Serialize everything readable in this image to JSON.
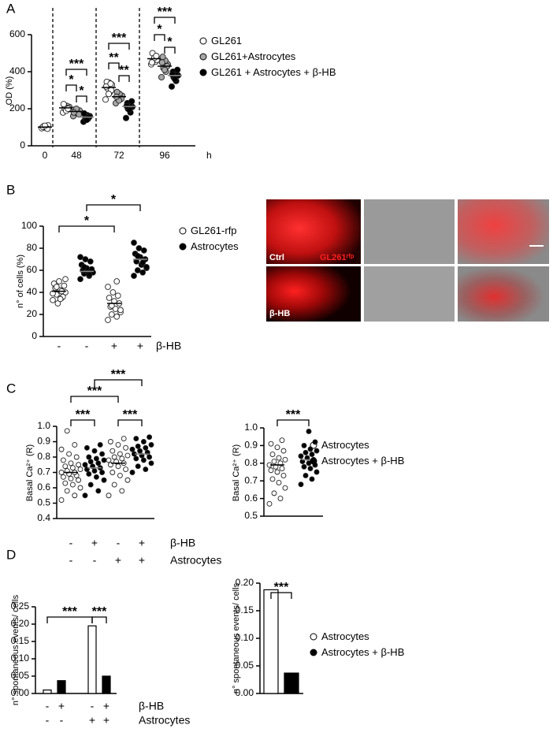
{
  "chart_data": [
    {
      "type": "dotplot",
      "panel": "A",
      "ylabel": "OD (%)",
      "rows": [
        {
          "label": "h",
          "values": [
            "0",
            "48",
            "72",
            "96"
          ]
        }
      ],
      "ylim": [
        0,
        600
      ],
      "yticks": [
        0,
        200,
        400,
        600
      ],
      "series": [
        {
          "name": "GL261",
          "color": "#ffffff",
          "values": [
            [
              95,
              100,
              105,
              110,
              98,
              102,
              92,
              108
            ],
            [
              180,
              195,
              200,
              210,
              215,
              220,
              205,
              190,
              225,
              200
            ],
            [
              250,
              290,
              310,
              330,
              340,
              345,
              300,
              280,
              320,
              335
            ],
            [
              440,
              455,
              460,
              470,
              480,
              500,
              465,
              475,
              450,
              485
            ]
          ],
          "means": [
            101,
            205,
            315,
            470
          ]
        },
        {
          "name": "GL261+Astrocytes",
          "color": "#a6a6a6",
          "values": [
            [],
            [
              160,
              175,
              180,
              190,
              185,
              195,
              170,
              200,
              180
            ],
            [
              230,
              250,
              260,
              270,
              280,
              290,
              255,
              245,
              265
            ],
            [
              370,
              400,
              420,
              440,
              460,
              480,
              430,
              410,
              450
            ]
          ],
          "means": [
            null,
            185,
            265,
            430
          ]
        },
        {
          "name": "GL261 + Astrocytes + β-HB",
          "color": "#000000",
          "values": [
            [],
            [
              130,
              145,
              150,
              160,
              165,
              170,
              155,
              140,
              175
            ],
            [
              150,
              180,
              200,
              210,
              220,
              230,
              240,
              195,
              215
            ],
            [
              320,
              350,
              370,
              380,
              390,
              400,
              410,
              360,
              385
            ]
          ],
          "means": [
            null,
            155,
            212,
            380
          ]
        }
      ],
      "significance": [
        "***",
        "*",
        "*",
        "***",
        "**",
        "**",
        "***",
        "*",
        "*"
      ]
    },
    {
      "type": "dotplot",
      "panel": "B",
      "ylabel": "n° of cells (%)",
      "rows": [
        {
          "label": "β-HB",
          "values": [
            "-",
            "-",
            "+",
            "+"
          ]
        }
      ],
      "ylim": [
        0,
        100
      ],
      "yticks": [
        0,
        20,
        40,
        60,
        80,
        100
      ],
      "series": [
        {
          "name": "GL261-rfp",
          "color": "#ffffff",
          "values": [
            [
              33,
              35,
              38,
              40,
              42,
              44,
              46,
              50,
              48,
              36,
              30,
              39,
              41,
              45,
              52,
              34
            ],
            null,
            [
              15,
              18,
              20,
              22,
              25,
              27,
              30,
              32,
              35,
              37,
              40,
              45,
              50,
              28,
              24
            ],
            null
          ],
          "means": [
            41,
            null,
            30,
            null
          ]
        },
        {
          "name": "Astrocytes",
          "color": "#000000",
          "values": [
            null,
            [
              52,
              55,
              57,
              58,
              59,
              60,
              61,
              62,
              65,
              68,
              70,
              72,
              56,
              63
            ],
            null,
            [
              55,
              58,
              60,
              62,
              65,
              68,
              70,
              72,
              75,
              78,
              80,
              85,
              67,
              73,
              63
            ]
          ],
          "means": [
            null,
            59,
            null,
            70
          ]
        }
      ],
      "significance": [
        "*",
        "*"
      ]
    },
    {
      "type": "dotplot",
      "panel": "C",
      "ylabel": "Basal Ca²⁺ (R)",
      "rows": [
        {
          "label": "β-HB",
          "values": [
            "-",
            "+",
            "-",
            "+"
          ]
        },
        {
          "label": "Astrocytes",
          "values": [
            "-",
            "-",
            "+",
            "+"
          ]
        }
      ],
      "ylim": [
        0.4,
        1
      ],
      "yticks": [
        0.4,
        0.5,
        0.6,
        0.7,
        0.8,
        0.9,
        {
          "value": 1,
          "label": "1.0"
        }
      ],
      "series": [
        {
          "color": "#ffffff",
          "values": [
            [
              0.52,
              0.55,
              0.58,
              0.6,
              0.62,
              0.63,
              0.65,
              0.66,
              0.67,
              0.68,
              0.69,
              0.7,
              0.7,
              0.71,
              0.72,
              0.73,
              0.74,
              0.75,
              0.76,
              0.78,
              0.8,
              0.82,
              0.85,
              0.88,
              0.97
            ],
            null,
            [
              0.55,
              0.58,
              0.62,
              0.65,
              0.68,
              0.7,
              0.72,
              0.74,
              0.75,
              0.76,
              0.77,
              0.78,
              0.79,
              0.8,
              0.81,
              0.82,
              0.84,
              0.86,
              0.88,
              0.9,
              0.92
            ],
            null
          ],
          "means": [
            0.7,
            null,
            0.76,
            null
          ]
        },
        {
          "color": "#000000",
          "values": [
            null,
            [
              0.55,
              0.58,
              0.62,
              0.65,
              0.67,
              0.69,
              0.7,
              0.71,
              0.72,
              0.73,
              0.74,
              0.75,
              0.76,
              0.77,
              0.78,
              0.79,
              0.8,
              0.82,
              0.84,
              0.86,
              0.88
            ],
            null,
            [
              0.7,
              0.72,
              0.74,
              0.76,
              0.78,
              0.79,
              0.8,
              0.81,
              0.82,
              0.83,
              0.84,
              0.85,
              0.86,
              0.87,
              0.88,
              0.9,
              0.92,
              0.93
            ]
          ],
          "means": [
            null,
            0.73,
            null,
            0.82
          ]
        }
      ],
      "significance": [
        "***",
        "***",
        "***",
        "***"
      ]
    },
    {
      "type": "dotplot",
      "ylabel": "Basal Ca²⁺ (R)",
      "ylim": [
        0.5,
        1
      ],
      "yticks": [
        0.5,
        0.6,
        0.7,
        0.8,
        0.9,
        {
          "value": 1,
          "label": "1.0"
        }
      ],
      "series": [
        {
          "name": "Astrocytes",
          "color": "#ffffff",
          "values": [
            [
              0.57,
              0.6,
              0.63,
              0.66,
              0.69,
              0.71,
              0.73,
              0.75,
              0.76,
              0.77,
              0.78,
              0.79,
              0.8,
              0.81,
              0.82,
              0.83,
              0.85,
              0.87,
              0.89,
              0.91,
              0.93
            ],
            null
          ],
          "means": [
            0.79,
            null
          ]
        },
        {
          "name": "Astrocytes + β-HB",
          "color": "#000000",
          "values": [
            null,
            [
              0.68,
              0.71,
              0.73,
              0.75,
              0.77,
              0.78,
              0.79,
              0.8,
              0.81,
              0.82,
              0.83,
              0.84,
              0.85,
              0.86,
              0.87,
              0.88,
              0.9,
              0.92,
              0.98
            ]
          ],
          "means": [
            null,
            0.82
          ]
        }
      ],
      "significance": [
        "***"
      ]
    },
    {
      "type": "bar",
      "panel": "D",
      "ylabel": "n° spontaneous events/ cells",
      "rows": [
        {
          "label": "β-HB",
          "values": [
            "-",
            "+",
            "-",
            "+"
          ]
        },
        {
          "label": "Astrocytes",
          "values": [
            "-",
            "-",
            "+",
            "+"
          ]
        }
      ],
      "ylim": [
        0,
        0.25
      ],
      "yticks": [
        {
          "value": 0,
          "label": "0.00"
        },
        {
          "value": 0.05,
          "label": "0.05"
        },
        {
          "value": 0.1,
          "label": "0.10"
        },
        {
          "value": 0.15,
          "label": "0.15"
        },
        {
          "value": 0.2,
          "label": "0.20"
        },
        {
          "value": 0.25,
          "label": "0.25"
        }
      ],
      "series": [
        {
          "color": "#ffffff",
          "values": [
            0.01,
            null,
            0.195,
            null
          ]
        },
        {
          "color": "#000000",
          "values": [
            null,
            0.037,
            null,
            0.05
          ]
        }
      ],
      "significance": [
        "***",
        "***"
      ]
    },
    {
      "type": "bar",
      "ylabel": "n° spontaneous events/ cells",
      "ylim": [
        0,
        0.2
      ],
      "yticks": [
        {
          "value": 0,
          "label": "0.00"
        },
        {
          "value": 0.05,
          "label": "0.05"
        },
        {
          "value": 0.1,
          "label": "0.10"
        },
        {
          "value": 0.15,
          "label": "0.15"
        },
        {
          "value": 0.2,
          "label": "0.20"
        }
      ],
      "series": [
        {
          "name": "Astrocytes",
          "color": "#ffffff",
          "values": [
            0.188,
            null
          ]
        },
        {
          "name": "Astrocytes + β-HB",
          "color": "#000000",
          "values": [
            null,
            0.037
          ]
        }
      ],
      "significance": [
        "***"
      ]
    }
  ],
  "image_panel": {
    "labels": [
      "Ctrl",
      "β-HB"
    ],
    "marker": "GL261ʳᶠᵖ"
  }
}
